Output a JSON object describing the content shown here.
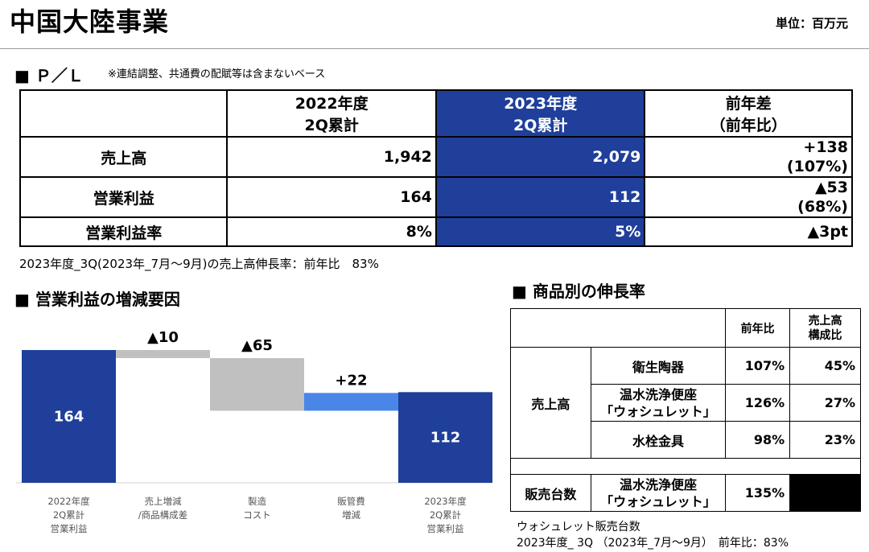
{
  "header": {
    "title": "中国大陸事業",
    "unit": "単位：百万元"
  },
  "pl": {
    "heading": "■ Ｐ／Ｌ",
    "note": "※連結調整、共通費の配賦等は含まないベース",
    "col_2022": [
      "2022年度",
      "2Q累計"
    ],
    "col_2023": [
      "2023年度",
      "2Q累計"
    ],
    "col_diff": [
      "前年差",
      "（前年比）"
    ],
    "rows": [
      {
        "label": "売上高",
        "v2022": "1,942",
        "v2023": "2,079",
        "diff1": "+138",
        "diff2": "(107%)"
      },
      {
        "label": "営業利益",
        "v2022": "164",
        "v2023": "112",
        "diff1": "▲53",
        "diff2": "(68%)"
      },
      {
        "label": "営業利益率",
        "v2022": "8%",
        "v2023": "5%",
        "diff1": "▲3pt",
        "diff2": ""
      }
    ],
    "footnote": "2023年度_3Q(2023年_7月～9月)の売上高伸長率：前年比　83%"
  },
  "factors": {
    "heading": "■ 営業利益の増減要因",
    "chart_data": {
      "type": "bar",
      "subtype": "waterfall",
      "categories": [
        [
          "2022年度",
          "2Q累計",
          "営業利益"
        ],
        [
          "売上増減",
          "/商品構成差"
        ],
        [
          "製造",
          "コスト"
        ],
        [
          "販管費",
          "増減"
        ],
        [
          "2023年度",
          "2Q累計",
          "営業利益"
        ]
      ],
      "values": [
        164,
        -10,
        -65,
        22,
        112
      ],
      "labels": [
        "164",
        "▲10",
        "▲65",
        "+22",
        "112"
      ],
      "colors": [
        "#1f3f9a",
        "#c0c0c0",
        "#c0c0c0",
        "#4a86e8",
        "#1f3f9a"
      ]
    }
  },
  "products": {
    "heading": "■ 商品別の伸長率",
    "col_yoy": "前年比",
    "col_share": [
      "売上高",
      "構成比"
    ],
    "sales_label": "売上高",
    "rows": [
      {
        "name": [
          "衛生陶器"
        ],
        "yoy": "107%",
        "share": "45%"
      },
      {
        "name": [
          "温水洗浄便座",
          "「ウォシュレット」"
        ],
        "yoy": "126%",
        "share": "27%"
      },
      {
        "name": [
          "水栓金具"
        ],
        "yoy": "98%",
        "share": "23%"
      }
    ],
    "units_label": "販売台数",
    "units_row": {
      "name": [
        "温水洗浄便座",
        "「ウォシュレット」"
      ],
      "yoy": "135%"
    },
    "footnote": [
      "ウォシュレット販売台数",
      "2023年度_ 3Q （2023年_7月～9月）　前年比：83%"
    ]
  }
}
